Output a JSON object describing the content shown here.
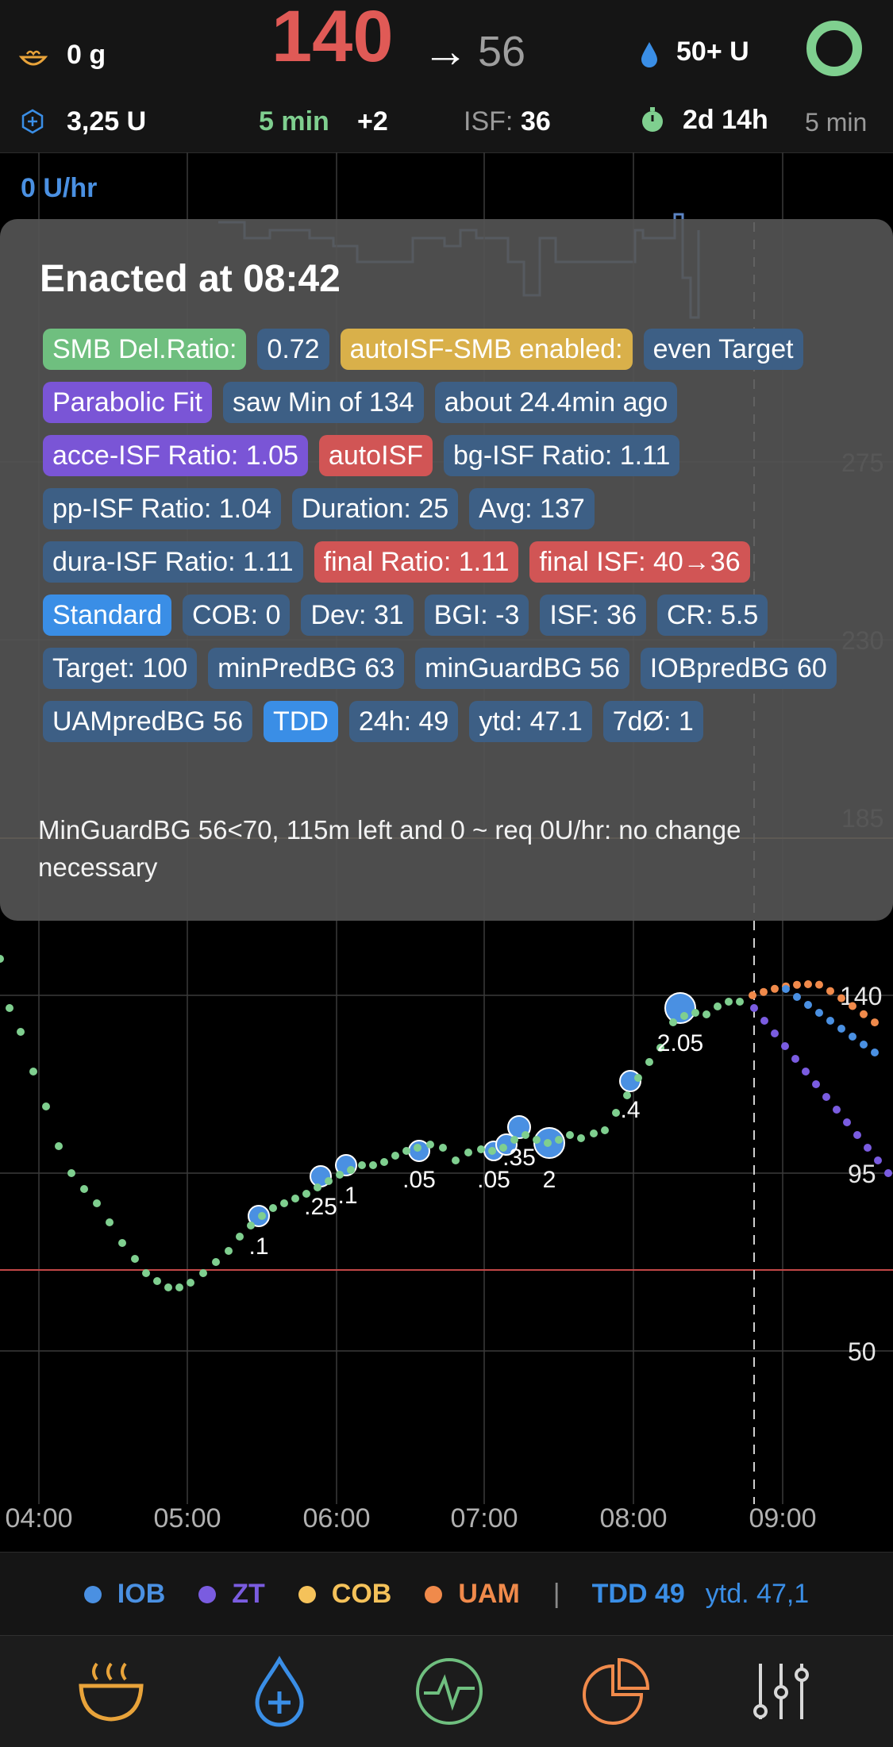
{
  "header": {
    "carbs": "0 g",
    "bg_value": "140",
    "bg_arrow": "→",
    "bg_predicted": "56",
    "reservoir": "50+ U",
    "iob": "3,25 U",
    "bg_age": "5 min",
    "bg_delta": "+2",
    "isf_label": "ISF:",
    "isf_value": "36",
    "sensor_age": "2d 14h",
    "loop_age": "5 min"
  },
  "basal_rate": "0 U/hr",
  "popup": {
    "title": "Enacted at 08:42",
    "tags": [
      {
        "text": "SMB Del.Ratio:",
        "color": "#6fbf7f"
      },
      {
        "text": "0.72",
        "color": "#3d5f85"
      },
      {
        "text": "autoISF-SMB enabled:",
        "color": "#d9b04a"
      },
      {
        "text": "even Target",
        "color": "#3d5f85"
      },
      {
        "text": "Parabolic Fit",
        "color": "#7a55d6"
      },
      {
        "text": "saw Min of 134",
        "color": "#3d5f85"
      },
      {
        "text": "about 24.4min ago",
        "color": "#3d5f85"
      },
      {
        "text": "acce-ISF Ratio: 1.05",
        "color": "#7a55d6"
      },
      {
        "text": "autoISF",
        "color": "#d15555"
      },
      {
        "text": "bg-ISF Ratio: 1.11",
        "color": "#3d5f85"
      },
      {
        "text": "pp-ISF Ratio: 1.04",
        "color": "#3d5f85"
      },
      {
        "text": "Duration: 25",
        "color": "#3d5f85"
      },
      {
        "text": "Avg: 137",
        "color": "#3d5f85"
      },
      {
        "text": "dura-ISF Ratio: 1.11",
        "color": "#3d5f85"
      },
      {
        "text": "final Ratio: 1.11",
        "color": "#d15555"
      },
      {
        "text": "final ISF: 40→36",
        "color": "#d15555"
      },
      {
        "text": "Standard",
        "color": "#3a8ee6"
      },
      {
        "text": "COB: 0",
        "color": "#3d5f85"
      },
      {
        "text": "Dev: 31",
        "color": "#3d5f85"
      },
      {
        "text": "BGI: -3",
        "color": "#3d5f85"
      },
      {
        "text": "ISF: 36",
        "color": "#3d5f85"
      },
      {
        "text": "CR: 5.5",
        "color": "#3d5f85"
      },
      {
        "text": "Target: 100",
        "color": "#3d5f85"
      },
      {
        "text": "minPredBG 63",
        "color": "#3d5f85"
      },
      {
        "text": "minGuardBG 56",
        "color": "#3d5f85"
      },
      {
        "text": "IOBpredBG 60",
        "color": "#3d5f85"
      },
      {
        "text": "UAMpredBG 56",
        "color": "#3d5f85"
      },
      {
        "text": "TDD",
        "color": "#3a8ee6"
      },
      {
        "text": "24h: 49",
        "color": "#3d5f85"
      },
      {
        "text": "ytd: 47.1",
        "color": "#3d5f85"
      },
      {
        "text": "7dØ: 1",
        "color": "#3d5f85"
      }
    ],
    "reason": "MinGuardBG 56<70, 115m left and 0 ~ req 0U/hr: no change necessary"
  },
  "chart": {
    "y_labels": [
      "275",
      "230",
      "185",
      "140",
      "95",
      "50"
    ],
    "time_labels": [
      "04:00",
      "05:00",
      "06:00",
      "07:00",
      "08:00",
      "09:00"
    ],
    "smb_labels": [
      ".1",
      ".25",
      ".1",
      ".05",
      ".05",
      ".35",
      "2",
      ".4",
      "2.05"
    ]
  },
  "legend": {
    "items": [
      {
        "label": "IOB",
        "color": "#4a90e2"
      },
      {
        "label": "ZT",
        "color": "#7a5ce0"
      },
      {
        "label": "COB",
        "color": "#f5c25a"
      },
      {
        "label": "UAM",
        "color": "#f08a4b"
      }
    ],
    "separator": "|",
    "tdd": "TDD 49",
    "ytd": "ytd. 47,1"
  },
  "tabs": [
    {
      "icon": "meal-icon",
      "color": "#e8a33a"
    },
    {
      "icon": "bolus-icon",
      "color": "#3a8ee6"
    },
    {
      "icon": "loop-status-icon",
      "color": "#6fbf7f"
    },
    {
      "icon": "statistics-icon",
      "color": "#f08a4b"
    },
    {
      "icon": "settings-icon",
      "color": "#d8d8d8"
    }
  ]
}
